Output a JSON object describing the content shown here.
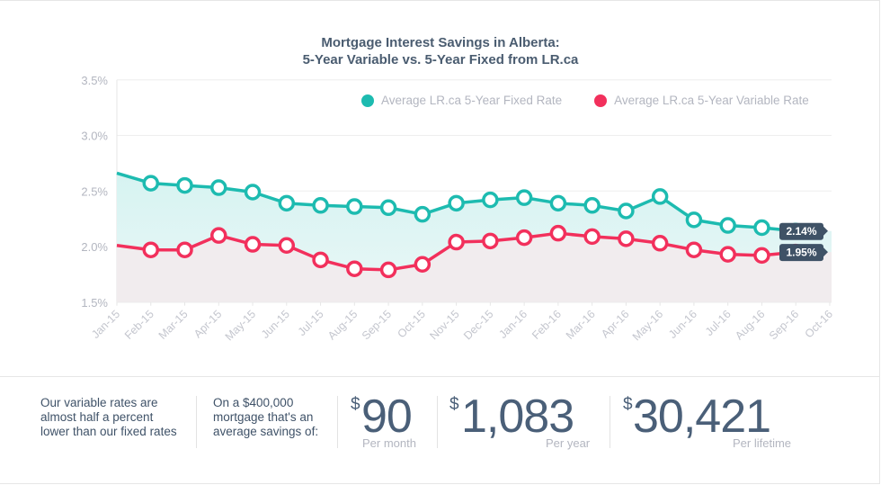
{
  "title": {
    "line1": "Mortgage Interest Savings in Alberta:",
    "line2": "5-Year Variable vs. 5-Year Fixed from LR.ca"
  },
  "legend": [
    {
      "label": "Average LR.ca 5-Year Fixed Rate",
      "color": "#1dbbb0"
    },
    {
      "label": "Average LR.ca 5-Year Variable Rate",
      "color": "#f2305c"
    }
  ],
  "chart_data": {
    "type": "area",
    "title": "Mortgage Interest Savings in Alberta: 5-Year Variable vs. 5-Year Fixed from LR.ca",
    "xlabel": "",
    "ylabel": "",
    "ylim": [
      1.5,
      3.5
    ],
    "yticks": [
      "3.5%",
      "3.0%",
      "2.5%",
      "2.0%",
      "1.5%"
    ],
    "grid": true,
    "legend_position": "top-right",
    "categories": [
      "Jan-15",
      "Feb-15",
      "Mar-15",
      "Apr-15",
      "May-15",
      "Jun-15",
      "Jul-15",
      "Aug-15",
      "Sep-15",
      "Oct-15",
      "Nov-15",
      "Dec-15",
      "Jan-16",
      "Feb-16",
      "Mar-16",
      "Apr-16",
      "May-16",
      "Jun-16",
      "Jul-16",
      "Aug-16",
      "Sep-16",
      "Oct-16"
    ],
    "series": [
      {
        "name": "Average LR.ca 5-Year Fixed Rate",
        "color": "#1dbbb0",
        "values": [
          2.66,
          2.57,
          2.55,
          2.53,
          2.49,
          2.39,
          2.37,
          2.36,
          2.35,
          2.29,
          2.39,
          2.42,
          2.44,
          2.39,
          2.37,
          2.32,
          2.45,
          2.24,
          2.19,
          2.17,
          2.14,
          null
        ]
      },
      {
        "name": "Average LR.ca 5-Year Variable Rate",
        "color": "#f2305c",
        "values": [
          2.01,
          1.97,
          1.97,
          2.1,
          2.02,
          2.01,
          1.88,
          1.8,
          1.79,
          1.84,
          2.04,
          2.05,
          2.08,
          2.12,
          2.09,
          2.07,
          2.03,
          1.97,
          1.93,
          1.92,
          1.95,
          null
        ]
      }
    ],
    "annotations": [
      {
        "series": "Average LR.ca 5-Year Fixed Rate",
        "label": "2.14%"
      },
      {
        "series": "Average LR.ca 5-Year Variable Rate",
        "label": "1.95%"
      }
    ]
  },
  "stats": {
    "blurb1": [
      "Our variable rates are",
      "almost half a percent",
      "lower than our fixed rates"
    ],
    "blurb2": [
      "On a $400,000",
      "mortgage that's an",
      "average savings of:"
    ],
    "currency": "$",
    "monthly": {
      "value": "90",
      "label": "Per month"
    },
    "yearly": {
      "value": "1,083",
      "label": "Per year"
    },
    "lifetime": {
      "value": "30,421",
      "label": "Per lifetime"
    }
  }
}
